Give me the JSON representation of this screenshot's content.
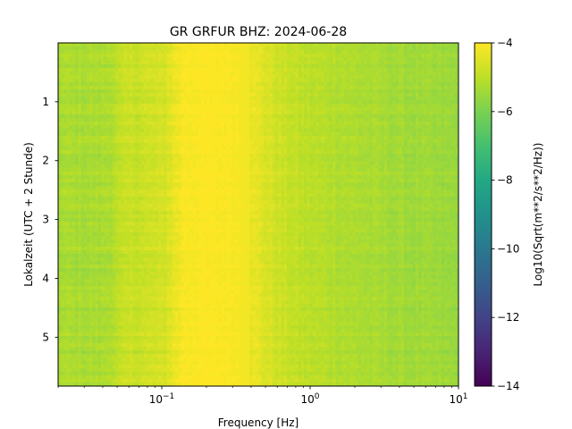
{
  "chart_data": {
    "type": "heatmap",
    "title": "GR GRFUR  BHZ: 2024-06-28",
    "xlabel": "Frequency [Hz]",
    "ylabel": "Lokalzeit (UTC + 2 Stunde)",
    "x_scale": "log",
    "xlim": [
      0.02,
      10
    ],
    "ylim": [
      5.83,
      0.0
    ],
    "x_ticks": [
      {
        "value": 0.1,
        "base": "10",
        "exp": "−1"
      },
      {
        "value": 1,
        "base": "10",
        "exp": "0"
      },
      {
        "value": 10,
        "base": "10",
        "exp": "1"
      }
    ],
    "y_ticks": [
      {
        "value": 1,
        "label": "1"
      },
      {
        "value": 2,
        "label": "2"
      },
      {
        "value": 3,
        "label": "3"
      },
      {
        "value": 4,
        "label": "4"
      },
      {
        "value": 5,
        "label": "5"
      }
    ],
    "colorbar": {
      "label": "Log10(Sqrt(m**2/s**2/Hz))",
      "colormap": "viridis",
      "range": [
        -14,
        -4
      ],
      "ticks": [
        {
          "value": -4,
          "label": "−4"
        },
        {
          "value": -6,
          "label": "−6"
        },
        {
          "value": -8,
          "label": "−8"
        },
        {
          "value": -10,
          "label": "−10"
        },
        {
          "value": -12,
          "label": "−12"
        },
        {
          "value": -14,
          "label": "−14"
        }
      ]
    },
    "spectrum_profile": {
      "frequency_hz": [
        0.02,
        0.04,
        0.06,
        0.1,
        0.14,
        0.2,
        0.3,
        0.45,
        0.6,
        0.8,
        1.0,
        1.5,
        2.0,
        3.0,
        5.0,
        7.0,
        10.0
      ],
      "value": [
        -5.3,
        -5.3,
        -4.85,
        -4.7,
        -4.05,
        -4.0,
        -4.05,
        -4.4,
        -4.75,
        -4.95,
        -5.05,
        -5.15,
        -5.25,
        -5.35,
        -5.45,
        -5.5,
        -5.55
      ]
    }
  }
}
